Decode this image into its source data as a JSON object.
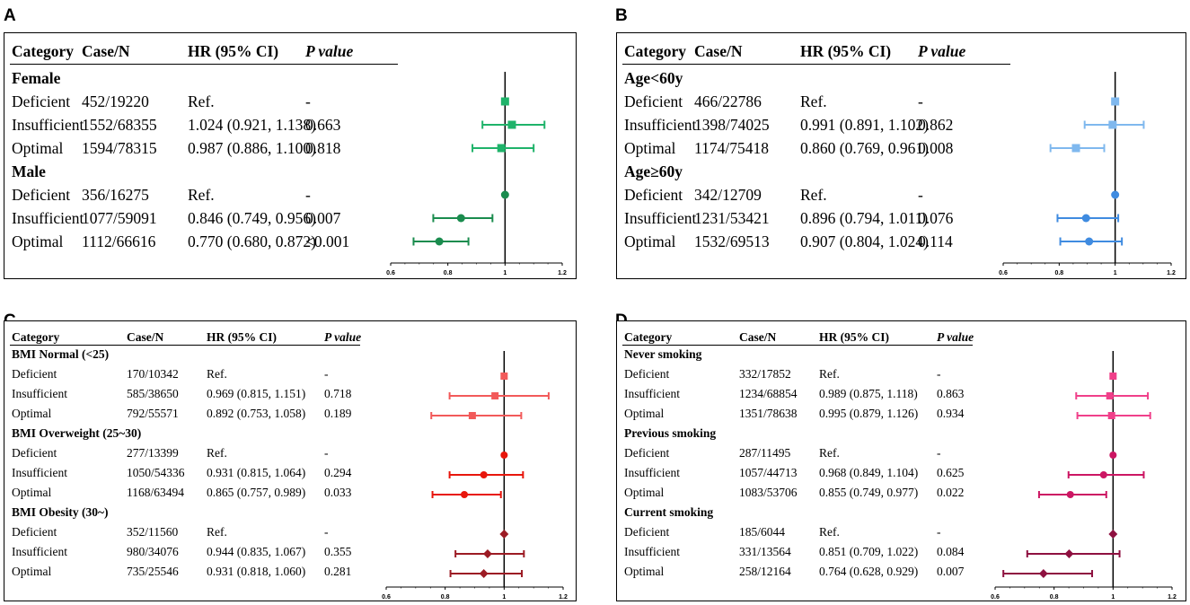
{
  "chart_data": [
    {
      "type": "forest",
      "panel_label": "A",
      "headers": {
        "category": "Category",
        "case_n": "Case/N",
        "hr": "HR (95% CI)",
        "p": "P value"
      },
      "x_axis": {
        "min": 0.6,
        "max": 1.2,
        "ticks": [
          0.6,
          0.8,
          1,
          1.2
        ],
        "tick_labels": [
          "0.6",
          "0.8",
          "1",
          "1.2"
        ],
        "reference": 1.0
      },
      "groups": [
        {
          "name": "Female",
          "marker": "square",
          "color": "#1fb36a",
          "rows": [
            {
              "category": "Deficient",
              "case_n": "452/19220",
              "hr_text": "Ref.",
              "p": "-",
              "hr": 1.0,
              "lo": null,
              "hi": null
            },
            {
              "category": "Insufficient",
              "case_n": "1552/68355",
              "hr_text": "1.024 (0.921, 1.138)",
              "p": "0.663",
              "hr": 1.024,
              "lo": 0.921,
              "hi": 1.138
            },
            {
              "category": "Optimal",
              "case_n": "1594/78315",
              "hr_text": "0.987 (0.886, 1.100)",
              "p": "0.818",
              "hr": 0.987,
              "lo": 0.886,
              "hi": 1.1
            }
          ]
        },
        {
          "name": "Male",
          "marker": "circle",
          "color": "#1a8c4e",
          "rows": [
            {
              "category": "Deficient",
              "case_n": "356/16275",
              "hr_text": "Ref.",
              "p": "-",
              "hr": 1.0,
              "lo": null,
              "hi": null
            },
            {
              "category": "Insufficient",
              "case_n": "1077/59091",
              "hr_text": "0.846 (0.749, 0.956)",
              "p": "0.007",
              "hr": 0.846,
              "lo": 0.749,
              "hi": 0.956
            },
            {
              "category": "Optimal",
              "case_n": "1112/66616",
              "hr_text": "0.770 (0.680, 0.872)",
              "p": "<0.001",
              "hr": 0.77,
              "lo": 0.68,
              "hi": 0.872
            }
          ]
        }
      ]
    },
    {
      "type": "forest",
      "panel_label": "B",
      "headers": {
        "category": "Category",
        "case_n": "Case/N",
        "hr": "HR (95% CI)",
        "p": "P value"
      },
      "x_axis": {
        "min": 0.6,
        "max": 1.2,
        "ticks": [
          0.6,
          0.8,
          1,
          1.2
        ],
        "tick_labels": [
          "0.6",
          "0.8",
          "1",
          "1.2"
        ],
        "reference": 1.0
      },
      "groups": [
        {
          "name": "Age<60y",
          "marker": "square",
          "color": "#7fb8ee",
          "rows": [
            {
              "category": "Deficient",
              "case_n": "466/22786",
              "hr_text": "Ref.",
              "p": "-",
              "hr": 1.0,
              "lo": null,
              "hi": null
            },
            {
              "category": "Insufficient",
              "case_n": "1398/74025",
              "hr_text": "0.991 (0.891, 1.102)",
              "p": "0.862",
              "hr": 0.991,
              "lo": 0.891,
              "hi": 1.102
            },
            {
              "category": "Optimal",
              "case_n": "1174/75418",
              "hr_text": "0.860 (0.769, 0.961)",
              "p": "0.008",
              "hr": 0.86,
              "lo": 0.769,
              "hi": 0.961
            }
          ]
        },
        {
          "name": "Age≥60y",
          "marker": "circle",
          "color": "#3f8be0",
          "rows": [
            {
              "category": "Deficient",
              "case_n": "342/12709",
              "hr_text": "Ref.",
              "p": "-",
              "hr": 1.0,
              "lo": null,
              "hi": null
            },
            {
              "category": "Insufficient",
              "case_n": "1231/53421",
              "hr_text": "0.896 (0.794, 1.011)",
              "p": "0.076",
              "hr": 0.896,
              "lo": 0.794,
              "hi": 1.011
            },
            {
              "category": "Optimal",
              "case_n": "1532/69513",
              "hr_text": "0.907 (0.804, 1.024)",
              "p": "0.114",
              "hr": 0.907,
              "lo": 0.804,
              "hi": 1.024
            }
          ]
        }
      ]
    },
    {
      "type": "forest",
      "panel_label": "C",
      "headers": {
        "category": "Category",
        "case_n": "Case/N",
        "hr": "HR (95% CI)",
        "p": "P value"
      },
      "x_axis": {
        "min": 0.6,
        "max": 1.2,
        "ticks": [
          0.6,
          0.8,
          1,
          1.2
        ],
        "tick_labels": [
          "0.6",
          "0.8",
          "1",
          "1.2"
        ],
        "reference": 1.0
      },
      "groups": [
        {
          "name": "BMI Normal (<25)",
          "marker": "square",
          "color": "#f25a5a",
          "rows": [
            {
              "category": "Deficient",
              "case_n": "170/10342",
              "hr_text": "Ref.",
              "p": "-",
              "hr": 1.0,
              "lo": null,
              "hi": null
            },
            {
              "category": "Insufficient",
              "case_n": "585/38650",
              "hr_text": "0.969 (0.815, 1.151)",
              "p": "0.718",
              "hr": 0.969,
              "lo": 0.815,
              "hi": 1.151
            },
            {
              "category": "Optimal",
              "case_n": "792/55571",
              "hr_text": "0.892 (0.753, 1.058)",
              "p": "0.189",
              "hr": 0.892,
              "lo": 0.753,
              "hi": 1.058
            }
          ]
        },
        {
          "name": "BMI Overweight (25~30)",
          "marker": "circle",
          "color": "#e8160c",
          "rows": [
            {
              "category": "Deficient",
              "case_n": "277/13399",
              "hr_text": "Ref.",
              "p": "-",
              "hr": 1.0,
              "lo": null,
              "hi": null
            },
            {
              "category": "Insufficient",
              "case_n": "1050/54336",
              "hr_text": "0.931 (0.815, 1.064)",
              "p": "0.294",
              "hr": 0.931,
              "lo": 0.815,
              "hi": 1.064
            },
            {
              "category": "Optimal",
              "case_n": "1168/63494",
              "hr_text": "0.865 (0.757, 0.989)",
              "p": "0.033",
              "hr": 0.865,
              "lo": 0.757,
              "hi": 0.989
            }
          ]
        },
        {
          "name": "BMI Obesity (30~)",
          "marker": "diamond",
          "color": "#9c1b24",
          "rows": [
            {
              "category": "Deficient",
              "case_n": "352/11560",
              "hr_text": "Ref.",
              "p": "-",
              "hr": 1.0,
              "lo": null,
              "hi": null
            },
            {
              "category": "Insufficient",
              "case_n": "980/34076",
              "hr_text": "0.944 (0.835, 1.067)",
              "p": "0.355",
              "hr": 0.944,
              "lo": 0.835,
              "hi": 1.067
            },
            {
              "category": "Optimal",
              "case_n": "735/25546",
              "hr_text": "0.931 (0.818, 1.060)",
              "p": "0.281",
              "hr": 0.931,
              "lo": 0.818,
              "hi": 1.06
            }
          ]
        }
      ]
    },
    {
      "type": "forest",
      "panel_label": "D",
      "headers": {
        "category": "Category",
        "case_n": "Case/N",
        "hr": "HR (95% CI)",
        "p": "P value"
      },
      "x_axis": {
        "min": 0.6,
        "max": 1.2,
        "ticks": [
          0.6,
          0.8,
          1,
          1.2
        ],
        "tick_labels": [
          "0.6",
          "0.8",
          "1",
          "1.2"
        ],
        "reference": 1.0
      },
      "groups": [
        {
          "name": "Never smoking",
          "marker": "square",
          "color": "#f0408a",
          "rows": [
            {
              "category": "Deficient",
              "case_n": "332/17852",
              "hr_text": "Ref.",
              "p": "-",
              "hr": 1.0,
              "lo": null,
              "hi": null
            },
            {
              "category": "Insufficient",
              "case_n": "1234/68854",
              "hr_text": "0.989 (0.875, 1.118)",
              "p": "0.863",
              "hr": 0.989,
              "lo": 0.875,
              "hi": 1.118
            },
            {
              "category": "Optimal",
              "case_n": "1351/78638",
              "hr_text": "0.995 (0.879, 1.126)",
              "p": "0.934",
              "hr": 0.995,
              "lo": 0.879,
              "hi": 1.126
            }
          ]
        },
        {
          "name": "Previous smoking",
          "marker": "circle",
          "color": "#cc1663",
          "rows": [
            {
              "category": "Deficient",
              "case_n": "287/11495",
              "hr_text": "Ref.",
              "p": "-",
              "hr": 1.0,
              "lo": null,
              "hi": null
            },
            {
              "category": "Insufficient",
              "case_n": "1057/44713",
              "hr_text": "0.968 (0.849, 1.104)",
              "p": "0.625",
              "hr": 0.968,
              "lo": 0.849,
              "hi": 1.104
            },
            {
              "category": "Optimal",
              "case_n": "1083/53706",
              "hr_text": "0.855 (0.749, 0.977)",
              "p": "0.022",
              "hr": 0.855,
              "lo": 0.749,
              "hi": 0.977
            }
          ]
        },
        {
          "name": "Current smoking",
          "marker": "diamond",
          "color": "#8e1040",
          "rows": [
            {
              "category": "Deficient",
              "case_n": "185/6044",
              "hr_text": "Ref.",
              "p": "-",
              "hr": 1.0,
              "lo": null,
              "hi": null
            },
            {
              "category": "Insufficient",
              "case_n": "331/13564",
              "hr_text": "0.851 (0.709, 1.022)",
              "p": "0.084",
              "hr": 0.851,
              "lo": 0.709,
              "hi": 1.022
            },
            {
              "category": "Optimal",
              "case_n": "258/12164",
              "hr_text": "0.764 (0.628, 0.929)",
              "p": "0.007",
              "hr": 0.764,
              "lo": 0.628,
              "hi": 0.929
            }
          ]
        }
      ]
    }
  ]
}
